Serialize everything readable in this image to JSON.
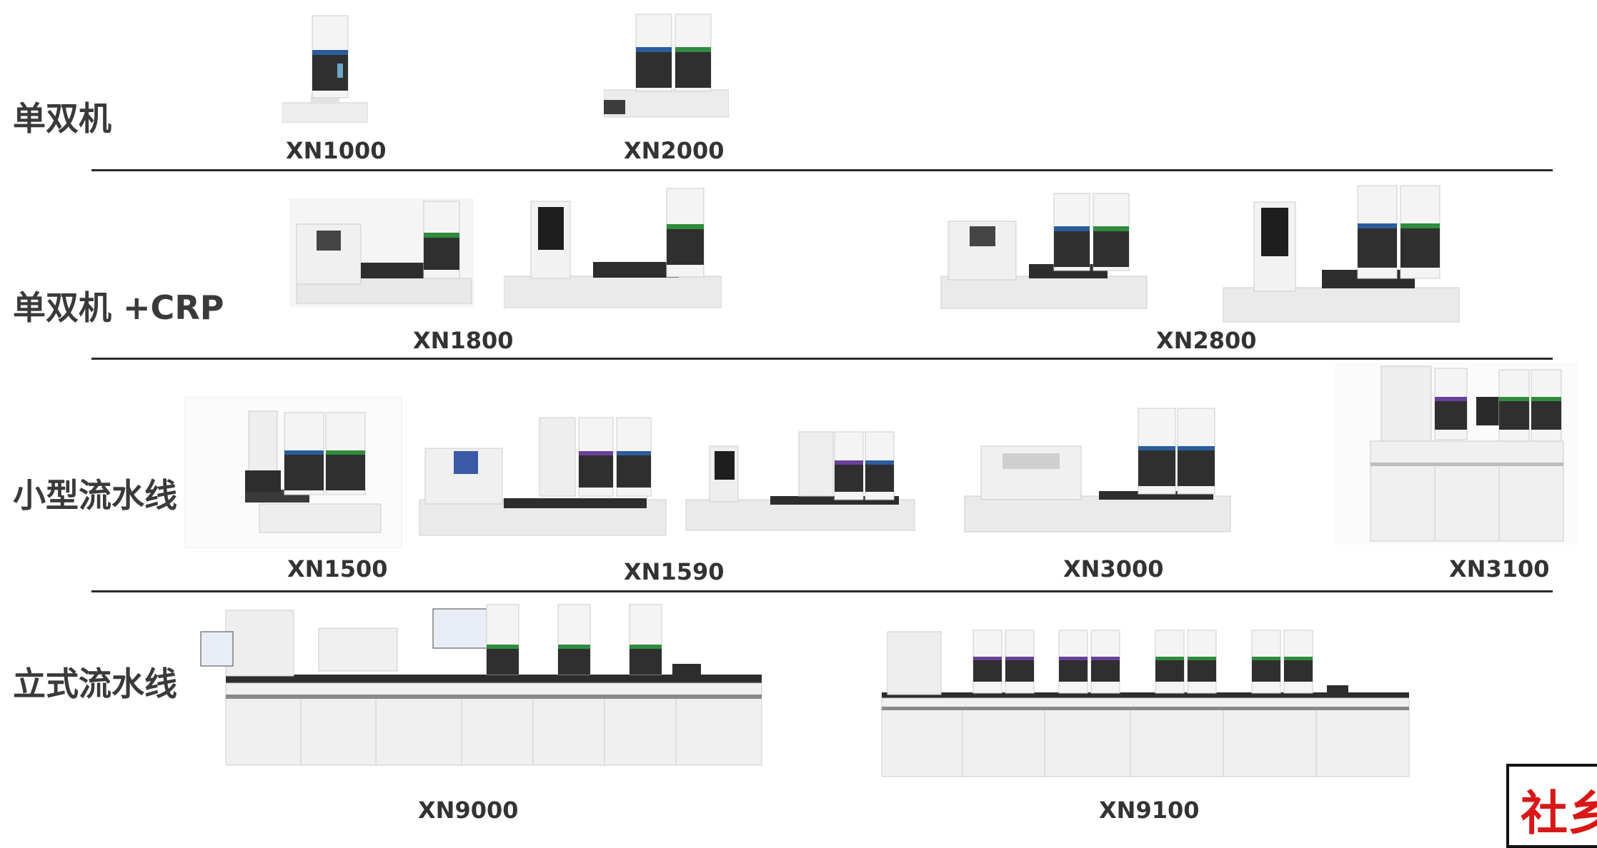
{
  "rows": [
    {
      "label": "单双机",
      "models": [
        "XN1000",
        "XN2000"
      ]
    },
    {
      "label": "单双机 +CRP",
      "models": [
        "XN1800",
        "XN2800"
      ]
    },
    {
      "label": "小型流水线",
      "models": [
        "XN1500",
        "XN1590",
        "XN3000",
        "XN3100"
      ]
    },
    {
      "label": "立式流水线",
      "models": [
        "XN9000",
        "XN9100"
      ]
    }
  ],
  "stamp": {
    "text": "社乡"
  },
  "colors": {
    "divider": "#2a2a2a",
    "module_top_blue": "#2b5d9c",
    "module_top_green": "#2f8b3e",
    "module_top_purple": "#6a3f9a",
    "stamp_red": "#d81818"
  }
}
